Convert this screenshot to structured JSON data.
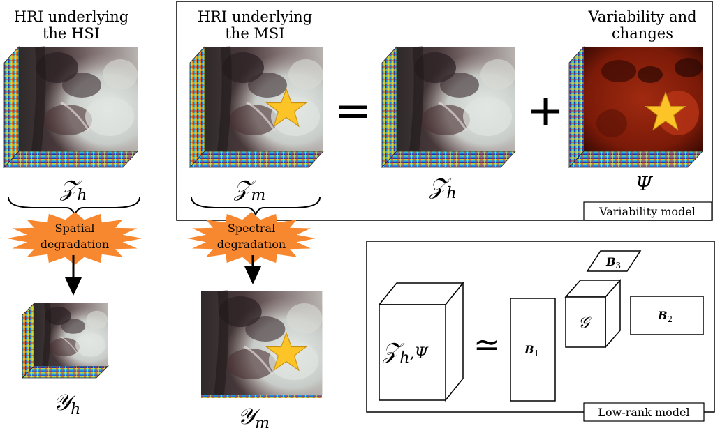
{
  "labels": {
    "hri_hsi": [
      "HRI underlying",
      "the HSI"
    ],
    "hri_msi": [
      "HRI underlying",
      "the MSI"
    ],
    "variability": [
      "Variability and",
      "changes"
    ],
    "variability_model": "Variability model",
    "lowrank_model": "Low-rank model",
    "spatial_degradation": [
      "Spatial",
      "degradation"
    ],
    "spectral_degradation": [
      "Spectral",
      "degradation"
    ]
  },
  "symbols": {
    "z_h": "𝒵",
    "z_h_sub": "h",
    "z_m": "𝒵",
    "z_m_sub": "m",
    "z_h2": "𝒵",
    "z_h2_sub": "h",
    "psi": "Ψ",
    "y_h": "𝒴",
    "y_h_sub": "h",
    "y_m": "𝒴",
    "y_m_sub": "m",
    "equals": "=",
    "plus": "+",
    "approx": "≃",
    "lr_lhs": "𝒵",
    "lr_lhs_sub": "h",
    "lr_lhs_tail": ",Ψ",
    "b1": "B",
    "b1_sub": "1",
    "b2": "B",
    "b2_sub": "2",
    "b3": "B",
    "b3_sub": "3",
    "g": "𝒢"
  },
  "colors": {
    "burst": "#f7882f",
    "star": "#fcc427",
    "scene_dark": "#3a3030",
    "scene_light": "#d8dcd6",
    "variability_red": "#8a1a0a"
  }
}
